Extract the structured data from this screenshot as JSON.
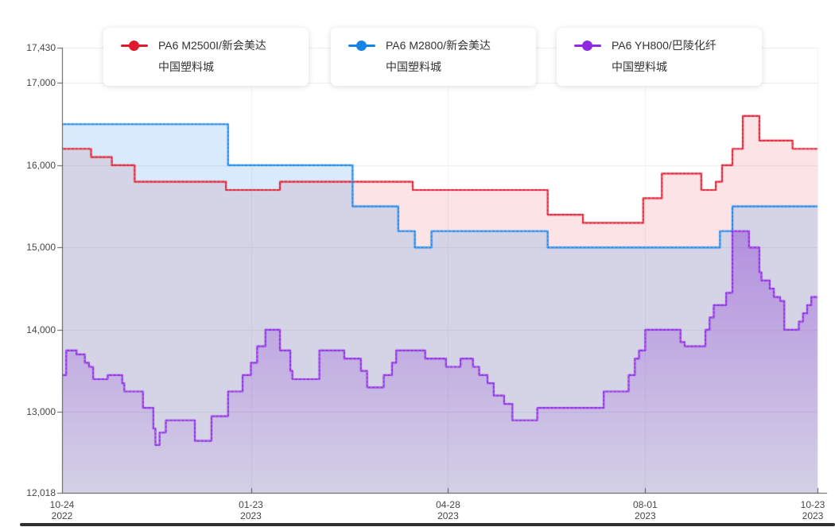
{
  "legend": {
    "items": [
      {
        "name": "PA6 M2500I/新会美达",
        "market": "中国塑料城",
        "color": "#e0192e"
      },
      {
        "name": "PA6 M2800/新会美达",
        "market": "中国塑料城",
        "color": "#1583e8"
      },
      {
        "name": "PA6 YH800/巴陵化纤",
        "market": "中国塑料城",
        "color": "#8e2be2"
      }
    ]
  },
  "chart_data": {
    "type": "area",
    "step": "after",
    "grid": true,
    "legend_position": "top",
    "y_axis": {
      "min": 12018,
      "max": 17430,
      "ticks": [
        {
          "value": 17430,
          "label": "17,430"
        },
        {
          "value": 17000,
          "label": "17,000"
        },
        {
          "value": 16000,
          "label": "16,000"
        },
        {
          "value": 15000,
          "label": "15,000"
        },
        {
          "value": 14000,
          "label": "14,000"
        },
        {
          "value": 13000,
          "label": "13,000"
        },
        {
          "value": 12018,
          "label": "12,018"
        }
      ]
    },
    "x_axis": {
      "range_days": [
        0,
        364
      ],
      "ticks": [
        {
          "day": 0,
          "label_top": "10-24",
          "label_bottom": "2022"
        },
        {
          "day": 91,
          "label_top": "01-23",
          "label_bottom": "2023"
        },
        {
          "day": 186,
          "label_top": "04-28",
          "label_bottom": "2023"
        },
        {
          "day": 281,
          "label_top": "08-01",
          "label_bottom": "2023"
        },
        {
          "day": 364,
          "label_top": "10-23",
          "label_bottom": "2023"
        }
      ],
      "grid_days": [
        91,
        186,
        281,
        364
      ]
    },
    "series": [
      {
        "name": "PA6 M2500I/新会美达 中国塑料城",
        "color": "#e0192e",
        "fill": "rgba(224,25,46,0.12)",
        "points": [
          [
            0,
            16200
          ],
          [
            14,
            16100
          ],
          [
            24,
            16000
          ],
          [
            35,
            15800
          ],
          [
            79,
            15700
          ],
          [
            105,
            15800
          ],
          [
            169,
            15700
          ],
          [
            234,
            15400
          ],
          [
            251,
            15300
          ],
          [
            280,
            15600
          ],
          [
            289,
            15900
          ],
          [
            308,
            15700
          ],
          [
            315,
            15800
          ],
          [
            318,
            16000
          ],
          [
            323,
            16200
          ],
          [
            328,
            16600
          ],
          [
            336,
            16300
          ],
          [
            352,
            16200
          ],
          [
            364,
            16200
          ]
        ]
      },
      {
        "name": "PA6 M2800/新会美达 中国塑料城",
        "color": "#1583e8",
        "fill": "rgba(21,131,232,0.17)",
        "points": [
          [
            0,
            16500
          ],
          [
            80,
            16000
          ],
          [
            140,
            15500
          ],
          [
            162,
            15200
          ],
          [
            170,
            15000
          ],
          [
            178,
            15200
          ],
          [
            234,
            15000
          ],
          [
            317,
            15200
          ],
          [
            323,
            15500
          ],
          [
            364,
            15500
          ]
        ]
      },
      {
        "name": "PA6 YH800/巴陵化纤 中国塑料城",
        "color": "#8e2be2",
        "fill_gradient": [
          "rgba(140,64,214,0.45)",
          "rgba(140,64,214,0.02)"
        ],
        "points": [
          [
            0,
            13450
          ],
          [
            2,
            13750
          ],
          [
            7,
            13700
          ],
          [
            11,
            13600
          ],
          [
            13,
            13550
          ],
          [
            15,
            13400
          ],
          [
            22,
            13450
          ],
          [
            29,
            13350
          ],
          [
            30,
            13250
          ],
          [
            39,
            13050
          ],
          [
            44,
            12800
          ],
          [
            45,
            12600
          ],
          [
            47,
            12750
          ],
          [
            50,
            12900
          ],
          [
            64,
            12650
          ],
          [
            72,
            12950
          ],
          [
            80,
            13250
          ],
          [
            87,
            13450
          ],
          [
            91,
            13600
          ],
          [
            94,
            13800
          ],
          [
            98,
            14000
          ],
          [
            105,
            13750
          ],
          [
            110,
            13500
          ],
          [
            111,
            13400
          ],
          [
            124,
            13750
          ],
          [
            136,
            13650
          ],
          [
            144,
            13500
          ],
          [
            147,
            13300
          ],
          [
            155,
            13450
          ],
          [
            159,
            13600
          ],
          [
            161,
            13750
          ],
          [
            175,
            13650
          ],
          [
            185,
            13550
          ],
          [
            192,
            13650
          ],
          [
            198,
            13550
          ],
          [
            201,
            13450
          ],
          [
            205,
            13350
          ],
          [
            208,
            13200
          ],
          [
            213,
            13100
          ],
          [
            217,
            12900
          ],
          [
            229,
            13050
          ],
          [
            261,
            13250
          ],
          [
            273,
            13450
          ],
          [
            276,
            13650
          ],
          [
            278,
            13750
          ],
          [
            281,
            14000
          ],
          [
            298,
            13850
          ],
          [
            300,
            13800
          ],
          [
            310,
            14000
          ],
          [
            312,
            14150
          ],
          [
            314,
            14300
          ],
          [
            320,
            14450
          ],
          [
            323,
            15200
          ],
          [
            331,
            15000
          ],
          [
            336,
            14700
          ],
          [
            337,
            14600
          ],
          [
            341,
            14500
          ],
          [
            343,
            14400
          ],
          [
            346,
            14350
          ],
          [
            348,
            14000
          ],
          [
            355,
            14100
          ],
          [
            357,
            14200
          ],
          [
            359,
            14300
          ],
          [
            361,
            14400
          ],
          [
            364,
            14400
          ]
        ]
      }
    ]
  },
  "colors": {
    "grid_h": "#ebebee",
    "grid_v": "#f1f1f4",
    "axis": "#555555",
    "tick_text": "#464646",
    "scrollbar": "#2f2f2f"
  }
}
